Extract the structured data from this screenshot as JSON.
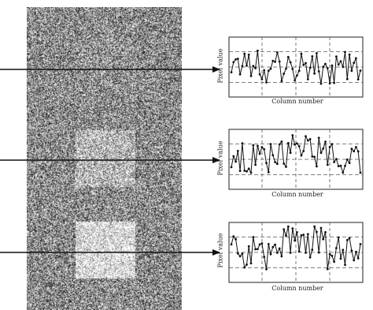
{
  "image": {
    "description_icon": "noise-image",
    "background_level": 0.55,
    "squares": [
      {
        "name": "top-square",
        "contrast": 0.02
      },
      {
        "name": "middle-square",
        "contrast": 0.18
      },
      {
        "name": "bottom-square",
        "contrast": 0.35
      }
    ]
  },
  "plots": [
    {
      "ylabel": "Pixel value",
      "xlabel": "Column number"
    },
    {
      "ylabel": "Pixel value",
      "xlabel": "Column number"
    },
    {
      "ylabel": "Pixel value",
      "xlabel": "Column number"
    }
  ],
  "colors": {
    "line": "#111111",
    "grid": "#555555",
    "arrow": "#111111"
  }
}
